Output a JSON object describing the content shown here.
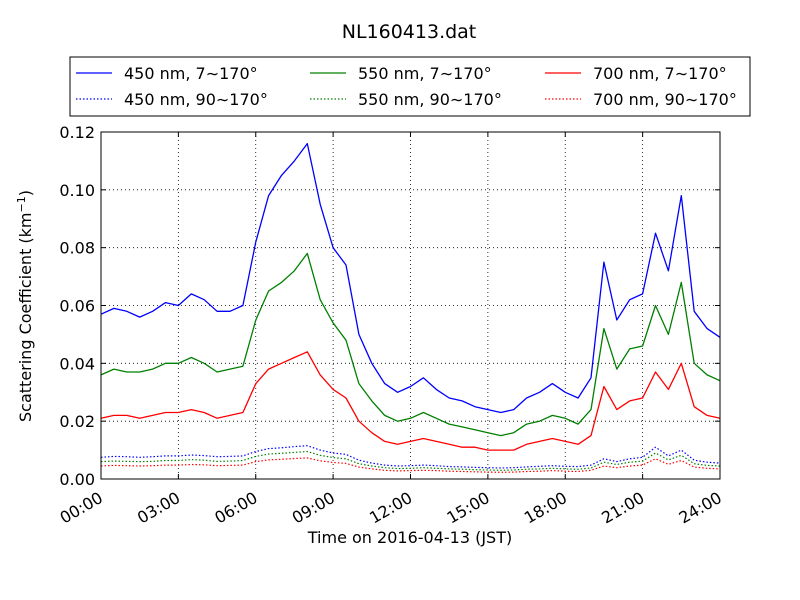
{
  "chart_data": {
    "type": "line",
    "title": "NL160413.dat",
    "xlabel": "Time on 2016-04-13 (JST)",
    "ylabel": "Scattering Coefficient (km",
    "ylabel_sup": "−1",
    "ylabel_close": ")",
    "xlim": [
      0,
      24
    ],
    "ylim": [
      0,
      0.12
    ],
    "grid": true,
    "legend_position": "top, outside plot area, 3 columns",
    "x_ticks": [
      0,
      3,
      6,
      9,
      12,
      15,
      18,
      21,
      24
    ],
    "x_tick_labels": [
      "00:00",
      "03:00",
      "06:00",
      "09:00",
      "12:00",
      "15:00",
      "18:00",
      "21:00",
      "24:00"
    ],
    "y_ticks": [
      0,
      0.02,
      0.04,
      0.06,
      0.08,
      0.1,
      0.12
    ],
    "y_tick_labels": [
      "0.00",
      "0.02",
      "0.04",
      "0.06",
      "0.08",
      "0.10",
      "0.12"
    ],
    "x_hours": [
      0.0,
      0.5,
      1.0,
      1.5,
      2.0,
      2.5,
      3.0,
      3.5,
      4.0,
      4.5,
      5.0,
      5.5,
      6.0,
      6.5,
      7.0,
      7.5,
      8.0,
      8.5,
      9.0,
      9.5,
      10.0,
      10.5,
      11.0,
      11.5,
      12.0,
      12.5,
      13.0,
      13.5,
      14.0,
      14.5,
      15.0,
      15.5,
      16.0,
      16.5,
      17.0,
      17.5,
      18.0,
      18.5,
      19.0,
      19.5,
      20.0,
      20.5,
      21.0,
      21.5,
      22.0,
      22.5,
      23.0,
      23.5,
      24.0
    ],
    "series": [
      {
        "name": "450 nm, 7∼170°",
        "color": "#0000ff",
        "style": "solid",
        "values": [
          0.057,
          0.059,
          0.058,
          0.056,
          0.058,
          0.061,
          0.06,
          0.064,
          0.062,
          0.058,
          0.058,
          0.06,
          0.082,
          0.098,
          0.105,
          0.11,
          0.116,
          0.095,
          0.08,
          0.074,
          0.05,
          0.04,
          0.033,
          0.03,
          0.032,
          0.035,
          0.031,
          0.028,
          0.027,
          0.025,
          0.024,
          0.023,
          0.024,
          0.028,
          0.03,
          0.033,
          0.03,
          0.028,
          0.035,
          0.075,
          0.055,
          0.062,
          0.064,
          0.085,
          0.072,
          0.098,
          0.058,
          0.052,
          0.049
        ]
      },
      {
        "name": "550 nm, 7∼170°",
        "color": "#008000",
        "style": "solid",
        "values": [
          0.036,
          0.038,
          0.037,
          0.037,
          0.038,
          0.04,
          0.04,
          0.042,
          0.04,
          0.037,
          0.038,
          0.039,
          0.055,
          0.065,
          0.068,
          0.072,
          0.078,
          0.062,
          0.054,
          0.048,
          0.033,
          0.027,
          0.022,
          0.02,
          0.021,
          0.023,
          0.021,
          0.019,
          0.018,
          0.017,
          0.016,
          0.015,
          0.016,
          0.019,
          0.02,
          0.022,
          0.021,
          0.019,
          0.024,
          0.052,
          0.038,
          0.045,
          0.046,
          0.06,
          0.05,
          0.068,
          0.04,
          0.036,
          0.034
        ]
      },
      {
        "name": "700 nm, 7∼170°",
        "color": "#ff0000",
        "style": "solid",
        "values": [
          0.021,
          0.022,
          0.022,
          0.021,
          0.022,
          0.023,
          0.023,
          0.024,
          0.023,
          0.021,
          0.022,
          0.023,
          0.033,
          0.038,
          0.04,
          0.042,
          0.044,
          0.036,
          0.031,
          0.028,
          0.02,
          0.016,
          0.013,
          0.012,
          0.013,
          0.014,
          0.013,
          0.012,
          0.011,
          0.011,
          0.01,
          0.01,
          0.01,
          0.012,
          0.013,
          0.014,
          0.013,
          0.012,
          0.015,
          0.032,
          0.024,
          0.027,
          0.028,
          0.037,
          0.031,
          0.04,
          0.025,
          0.022,
          0.021
        ]
      },
      {
        "name": "450 nm, 90∼170°",
        "color": "#0000ff",
        "style": "dotted",
        "values": [
          0.0075,
          0.0078,
          0.0077,
          0.0075,
          0.0077,
          0.008,
          0.008,
          0.0083,
          0.0081,
          0.0077,
          0.0078,
          0.008,
          0.0095,
          0.0105,
          0.0108,
          0.0112,
          0.0115,
          0.01,
          0.009,
          0.0085,
          0.0065,
          0.0055,
          0.0048,
          0.0045,
          0.0046,
          0.0048,
          0.0046,
          0.0043,
          0.0042,
          0.004,
          0.0039,
          0.0038,
          0.0039,
          0.0042,
          0.0044,
          0.0046,
          0.0044,
          0.0043,
          0.0048,
          0.007,
          0.006,
          0.007,
          0.0075,
          0.011,
          0.008,
          0.01,
          0.0065,
          0.0058,
          0.0055
        ]
      },
      {
        "name": "550 nm, 90∼170°",
        "color": "#008000",
        "style": "dotted",
        "values": [
          0.006,
          0.0062,
          0.0061,
          0.006,
          0.0061,
          0.0064,
          0.0064,
          0.0067,
          0.0065,
          0.0061,
          0.0062,
          0.0064,
          0.0078,
          0.0086,
          0.0089,
          0.0092,
          0.0095,
          0.0082,
          0.0074,
          0.007,
          0.0053,
          0.0045,
          0.0039,
          0.0036,
          0.0037,
          0.0039,
          0.0037,
          0.0035,
          0.0034,
          0.0032,
          0.0031,
          0.003,
          0.0031,
          0.0034,
          0.0035,
          0.0037,
          0.0035,
          0.0034,
          0.0038,
          0.0058,
          0.005,
          0.0058,
          0.0062,
          0.009,
          0.0066,
          0.0082,
          0.0053,
          0.0047,
          0.0045
        ]
      },
      {
        "name": "700 nm, 90∼170°",
        "color": "#ff0000",
        "style": "dotted",
        "values": [
          0.0045,
          0.0047,
          0.0046,
          0.0045,
          0.0046,
          0.0048,
          0.0048,
          0.005,
          0.0049,
          0.0046,
          0.0047,
          0.0048,
          0.006,
          0.0066,
          0.0068,
          0.0071,
          0.0073,
          0.0063,
          0.0057,
          0.0054,
          0.0041,
          0.0035,
          0.003,
          0.0028,
          0.0029,
          0.003,
          0.0029,
          0.0027,
          0.0026,
          0.0025,
          0.0024,
          0.0023,
          0.0024,
          0.0026,
          0.0027,
          0.0029,
          0.0027,
          0.0026,
          0.003,
          0.0045,
          0.0039,
          0.0045,
          0.0048,
          0.007,
          0.0051,
          0.0064,
          0.0041,
          0.0037,
          0.0035
        ]
      }
    ]
  }
}
